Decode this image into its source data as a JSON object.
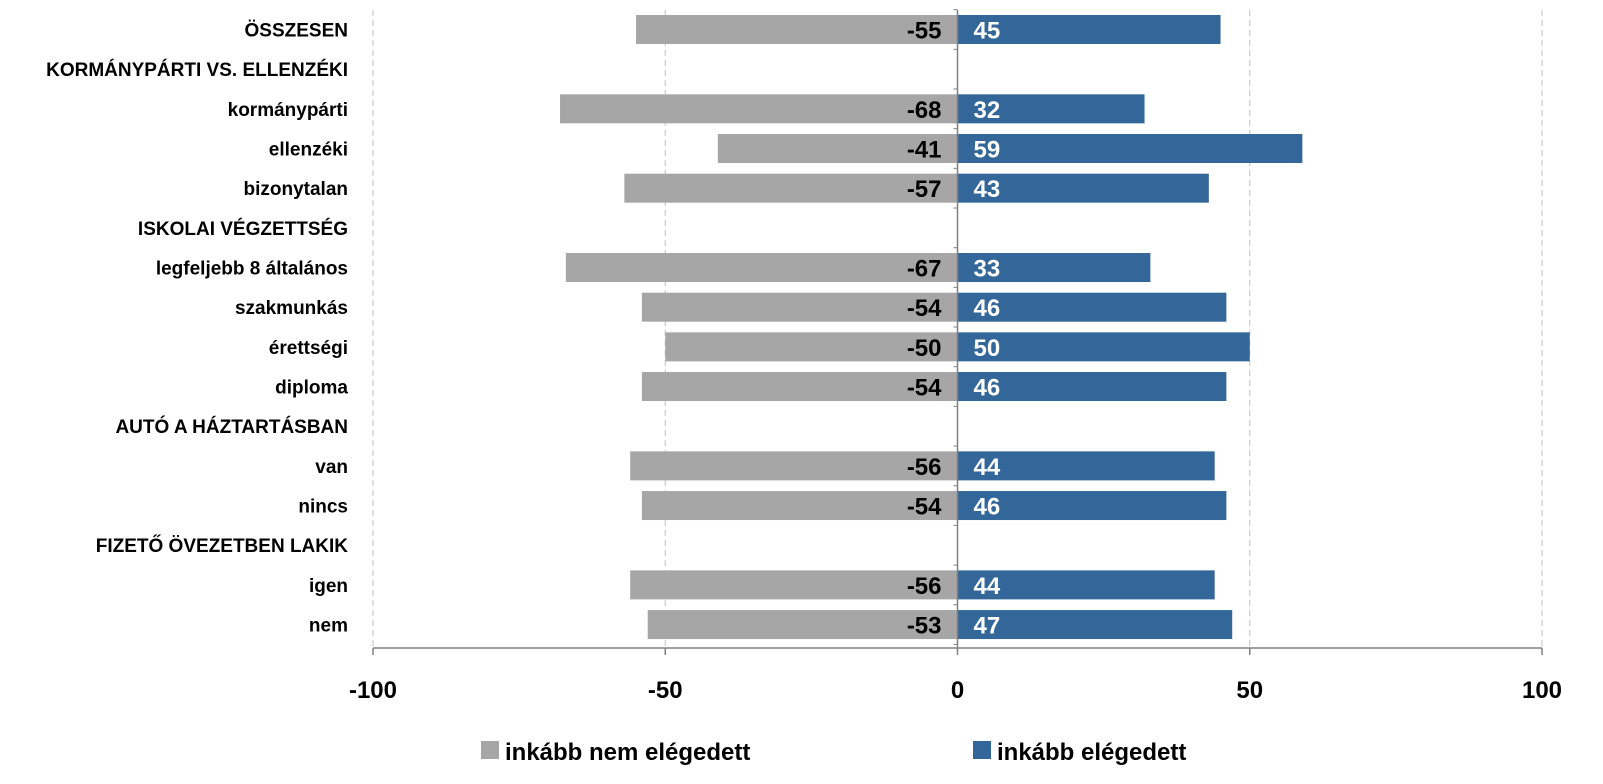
{
  "chart_data": {
    "type": "bar",
    "orientation": "horizontal",
    "stacked": "diverging",
    "categories": [
      "ÖSSZESEN",
      "KORMÁNYPÁRTI VS. ELLENZÉKI",
      "kormánypárti",
      "ellenzéki",
      "bizonytalan",
      "ISKOLAI VÉGZETTSÉG",
      "legfeljebb 8 általános",
      "szakmunkás",
      "érettségi",
      "diploma",
      "AUTÓ A HÁZTARTÁSBAN",
      "van",
      "nincs",
      "FIZETŐ ÖVEZETBEN LAKIK",
      "igen",
      "nem"
    ],
    "series": [
      {
        "name": "inkább nem elégedett",
        "color": "#a6a6a6",
        "values": [
          -55,
          null,
          -68,
          -41,
          -57,
          null,
          -67,
          -54,
          -50,
          -54,
          null,
          -56,
          -54,
          null,
          -56,
          -53
        ]
      },
      {
        "name": "inkább elégedett",
        "color": "#336699",
        "values": [
          45,
          null,
          32,
          59,
          43,
          null,
          33,
          46,
          50,
          46,
          null,
          44,
          46,
          null,
          44,
          47
        ]
      }
    ],
    "xlim": [
      -100,
      100
    ],
    "xticks": [
      -100,
      -50,
      0,
      50,
      100
    ],
    "xtick_labels": [
      "-100",
      "-50",
      "0",
      "50",
      "100"
    ],
    "grid": "vertical-dashed",
    "legend_position": "bottom",
    "title": "",
    "xlabel": "",
    "ylabel": ""
  }
}
